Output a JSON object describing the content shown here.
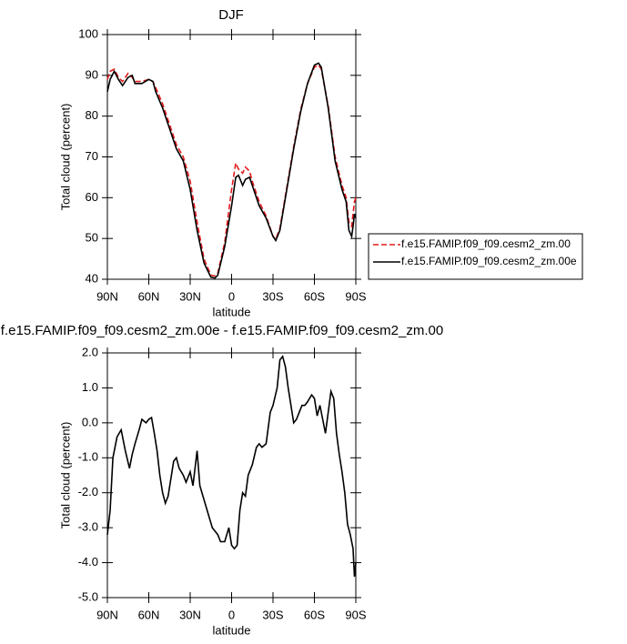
{
  "chart_data": [
    {
      "type": "line",
      "title": "DJF",
      "x_label": "latitude",
      "y_label": "Total cloud (percent)",
      "x": [
        90,
        88,
        85,
        82,
        79,
        75,
        72,
        70,
        65,
        60,
        57,
        55,
        50,
        45,
        40,
        35,
        30,
        25,
        20,
        15,
        12,
        10,
        5,
        0,
        -3,
        -5,
        -8,
        -10,
        -13,
        -15,
        -20,
        -25,
        -30,
        -32,
        -35,
        -40,
        -45,
        -50,
        -55,
        -60,
        -63,
        -65,
        -70,
        -75,
        -80,
        -83,
        -85,
        -87,
        -88,
        -89,
        -90
      ],
      "series": [
        {
          "name": "f.e15.FAMIP.f09_f09.cesm2_zm.00",
          "color": "#e41a1c",
          "line_style": "dashed",
          "values": [
            89,
            91,
            91.5,
            89.5,
            88.5,
            90.5,
            89.5,
            88.5,
            88.5,
            89,
            88.5,
            87,
            83,
            78,
            73,
            70,
            64,
            54,
            45,
            41,
            40.8,
            41.5,
            49,
            62,
            68.5,
            67,
            66,
            67.5,
            66.5,
            64,
            59,
            55.5,
            50.5,
            49.8,
            52.5,
            62.5,
            72.5,
            81.5,
            88,
            92,
            92.5,
            91.5,
            82.5,
            70,
            63,
            60,
            54,
            53,
            56,
            59,
            60
          ]
        },
        {
          "name": "f.e15.FAMIP.f09_f09.cesm2_zm.00e",
          "color": "#000000",
          "line_style": "solid",
          "values": [
            86,
            89,
            91,
            89,
            87.5,
            89.5,
            90,
            88,
            88,
            89,
            88.5,
            86,
            82,
            77,
            72,
            69,
            62,
            52,
            44,
            40.5,
            40.3,
            41,
            48,
            58,
            65,
            65.5,
            63,
            64.5,
            65,
            63,
            58,
            55,
            50.5,
            49.5,
            52,
            62,
            72,
            81,
            88,
            92.5,
            93,
            92,
            82,
            69,
            62,
            59,
            52,
            50.5,
            53,
            56,
            55
          ]
        }
      ],
      "xlim": [
        90,
        -90
      ],
      "ylim": [
        40,
        100
      ],
      "xticks": [
        {
          "value": 90,
          "label": "90N"
        },
        {
          "value": 60,
          "label": "60N"
        },
        {
          "value": 30,
          "label": "30N"
        },
        0,
        {
          "value": -30,
          "label": "30S"
        },
        {
          "value": -60,
          "label": "60S"
        },
        {
          "value": -90,
          "label": "90S"
        }
      ],
      "yticks": [
        40,
        50,
        60,
        70,
        80,
        90,
        100
      ],
      "legend": "right"
    },
    {
      "type": "line",
      "title": "f.e15.FAMIP.f09_f09.cesm2_zm.00e - f.e15.FAMIP.f09_f09.cesm2_zm.00",
      "x_label": "latitude",
      "y_label": "Total cloud (percent)",
      "x": [
        90,
        88,
        86,
        83,
        80,
        77,
        74,
        72,
        70,
        67,
        65,
        62,
        60,
        58,
        56,
        54,
        52,
        50,
        48,
        46,
        44,
        42,
        40,
        38,
        35,
        33,
        30,
        28,
        25,
        23,
        20,
        17,
        14,
        10,
        8,
        5,
        2,
        0,
        -2,
        -4,
        -6,
        -8,
        -10,
        -12,
        -15,
        -18,
        -20,
        -22,
        -25,
        -28,
        -30,
        -33,
        -35,
        -37,
        -39,
        -41,
        -43,
        -45,
        -47,
        -49,
        -51,
        -53,
        -55,
        -58,
        -60,
        -62,
        -64,
        -66,
        -68,
        -70,
        -72,
        -74,
        -76,
        -78,
        -80,
        -82,
        -84,
        -86,
        -88,
        -89,
        -90
      ],
      "series": [
        {
          "color": "#000000",
          "line_style": "solid",
          "values": [
            -3.2,
            -2.5,
            -1.0,
            -0.4,
            -0.2,
            -0.8,
            -1.3,
            -0.9,
            -0.6,
            -0.2,
            0.1,
            0.0,
            0.1,
            0.15,
            -0.3,
            -0.8,
            -1.5,
            -2.0,
            -2.3,
            -2.1,
            -1.6,
            -1.1,
            -1.0,
            -1.3,
            -1.5,
            -1.7,
            -1.4,
            -1.8,
            -0.8,
            -1.8,
            -2.2,
            -2.6,
            -3.0,
            -3.2,
            -3.4,
            -3.4,
            -3.0,
            -3.5,
            -3.6,
            -3.5,
            -2.5,
            -2.0,
            -2.1,
            -1.5,
            -1.2,
            -0.7,
            -0.6,
            -0.7,
            -0.6,
            0.3,
            0.5,
            1.0,
            1.8,
            1.9,
            1.6,
            1.0,
            0.5,
            0.0,
            0.1,
            0.3,
            0.5,
            0.5,
            0.6,
            0.8,
            0.7,
            0.2,
            0.5,
            0.1,
            -0.3,
            0.3,
            0.9,
            0.7,
            -0.3,
            -0.9,
            -1.4,
            -2.0,
            -2.9,
            -3.2,
            -3.6,
            -4.4,
            -4.0
          ]
        }
      ],
      "xlim": [
        90,
        -90
      ],
      "ylim": [
        -5,
        2
      ],
      "xticks": [
        {
          "value": 90,
          "label": "90N"
        },
        {
          "value": 60,
          "label": "60N"
        },
        {
          "value": 30,
          "label": "30N"
        },
        0,
        {
          "value": -30,
          "label": "30S"
        },
        {
          "value": -60,
          "label": "60S"
        },
        {
          "value": -90,
          "label": "90S"
        }
      ],
      "yticks": [
        {
          "value": 2,
          "label": "2.0"
        },
        {
          "value": 1,
          "label": "1.0"
        },
        {
          "value": 0,
          "label": "0.0"
        },
        {
          "value": -1,
          "label": "-1.0"
        },
        {
          "value": -2,
          "label": "-2.0"
        },
        {
          "value": -3,
          "label": "-3.0"
        },
        {
          "value": -4,
          "label": "-4.0"
        },
        {
          "value": -5,
          "label": "-5.0"
        }
      ]
    }
  ]
}
